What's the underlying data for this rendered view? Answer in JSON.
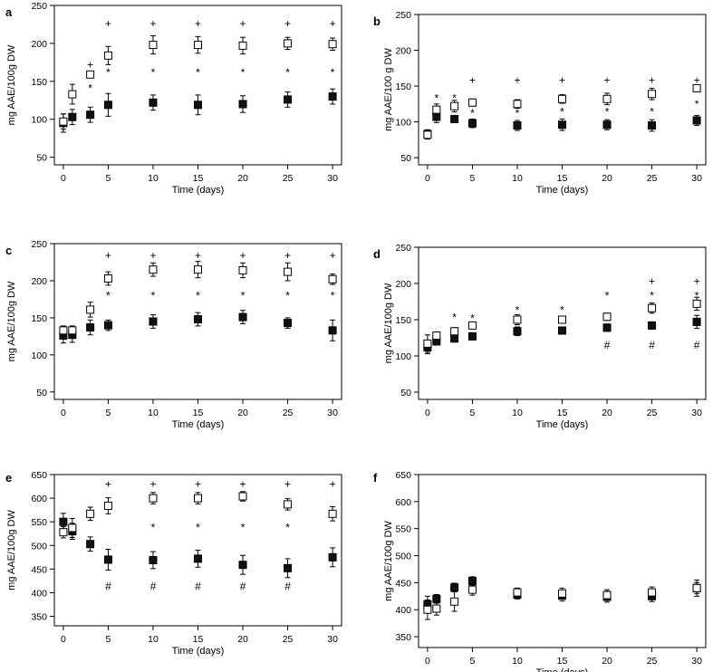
{
  "figure": {
    "colors": {
      "foreground": "#000000",
      "open_marker_fill": "#ffffff",
      "filled_marker_fill": "#111111",
      "background": "#ffffff"
    }
  },
  "chart_data": [
    {
      "panel": "a",
      "type": "scatter",
      "xlabel": "Time (days)",
      "ylabel": "mg  AAE/100g DW",
      "xlim": [
        -1,
        31
      ],
      "ylim": [
        40,
        250
      ],
      "xticks": [
        0,
        5,
        10,
        15,
        20,
        25,
        30
      ],
      "yticks": [
        50,
        100,
        150,
        200,
        250
      ],
      "series": [
        {
          "name": "open",
          "marker": "open-square",
          "x": [
            0,
            1,
            3,
            5,
            10,
            15,
            20,
            25,
            30
          ],
          "y": [
            97,
            133,
            159,
            184,
            198,
            198,
            197,
            200,
            199
          ],
          "err": [
            10,
            13,
            4,
            12,
            12,
            11,
            11,
            8,
            8
          ]
        },
        {
          "name": "filled",
          "marker": "filled-square",
          "x": [
            0,
            1,
            3,
            5,
            10,
            15,
            20,
            25,
            30
          ],
          "y": [
            95,
            103,
            106,
            119,
            122,
            119,
            120,
            126,
            130
          ],
          "err": [
            12,
            10,
            10,
            15,
            10,
            13,
            11,
            10,
            10
          ]
        }
      ],
      "annotations": [
        {
          "text": "+",
          "x": [
            3,
            5,
            10,
            15,
            20,
            25,
            30
          ],
          "y": [
            172,
            226,
            226,
            226,
            226,
            226,
            226
          ]
        },
        {
          "text": "*",
          "x": [
            3,
            5,
            10,
            15,
            20,
            25,
            30
          ],
          "y": [
            141,
            162,
            162,
            162,
            162,
            162,
            162
          ]
        }
      ]
    },
    {
      "panel": "b",
      "type": "scatter",
      "xlabel": "Time (days)",
      "ylabel": "mg AAE/100 g DW",
      "xlim": [
        -1,
        31
      ],
      "ylim": [
        40,
        250
      ],
      "xticks": [
        0,
        5,
        10,
        15,
        20,
        25,
        30
      ],
      "yticks": [
        50,
        100,
        150,
        200,
        250
      ],
      "series": [
        {
          "name": "open",
          "marker": "open-square",
          "x": [
            0,
            1,
            3,
            5,
            10,
            15,
            20,
            25,
            30
          ],
          "y": [
            82,
            117,
            122,
            127,
            125,
            132,
            132,
            139,
            147
          ],
          "err": [
            6,
            8,
            8,
            5,
            6,
            6,
            8,
            8,
            4
          ]
        },
        {
          "name": "filled",
          "marker": "filled-square",
          "x": [
            0,
            1,
            3,
            5,
            10,
            15,
            20,
            25,
            30
          ],
          "y": [
            83,
            107,
            104,
            98,
            95,
            96,
            96,
            95,
            102
          ],
          "err": [
            6,
            8,
            3,
            6,
            7,
            8,
            7,
            8,
            7
          ]
        }
      ],
      "annotations": [
        {
          "text": "+",
          "x": [
            5,
            10,
            15,
            20,
            25,
            30
          ],
          "y": [
            158,
            158,
            158,
            158,
            158,
            158
          ]
        },
        {
          "text": "*",
          "x": [
            1,
            3,
            5,
            10,
            15,
            20,
            25,
            30
          ],
          "y": [
            133,
            133,
            112,
            112,
            114,
            114,
            114,
            125
          ]
        }
      ]
    },
    {
      "panel": "c",
      "type": "scatter",
      "xlabel": "Time (days)",
      "ylabel": "mg AAE/100g DW",
      "xlim": [
        -1,
        31
      ],
      "ylim": [
        40,
        250
      ],
      "xticks": [
        0,
        5,
        10,
        15,
        20,
        25,
        30
      ],
      "yticks": [
        50,
        100,
        150,
        200,
        250
      ],
      "series": [
        {
          "name": "open",
          "marker": "open-square",
          "x": [
            0,
            1,
            3,
            5,
            10,
            15,
            20,
            25,
            30
          ],
          "y": [
            133,
            133,
            161,
            203,
            215,
            215,
            214,
            212,
            202
          ],
          "err": [
            6,
            6,
            10,
            9,
            9,
            11,
            10,
            12,
            7
          ]
        },
        {
          "name": "filled",
          "marker": "filled-square",
          "x": [
            0,
            1,
            3,
            5,
            10,
            15,
            20,
            25,
            30
          ],
          "y": [
            126,
            127,
            137,
            140,
            145,
            148,
            151,
            143,
            133
          ],
          "err": [
            10,
            10,
            10,
            7,
            9,
            9,
            9,
            7,
            14
          ]
        }
      ],
      "annotations": [
        {
          "text": "+",
          "x": [
            5,
            10,
            15,
            20,
            25,
            30
          ],
          "y": [
            234,
            234,
            234,
            234,
            234,
            234
          ]
        },
        {
          "text": "*",
          "x": [
            5,
            10,
            15,
            20,
            25,
            30
          ],
          "y": [
            180,
            180,
            180,
            180,
            180,
            180
          ]
        }
      ]
    },
    {
      "panel": "d",
      "type": "scatter",
      "xlabel": "Time (days)",
      "ylabel": "mg AAE/100g DW",
      "xlim": [
        -1,
        31
      ],
      "ylim": [
        40,
        250
      ],
      "xticks": [
        0,
        5,
        10,
        15,
        20,
        25,
        30
      ],
      "yticks": [
        50,
        100,
        150,
        200,
        250
      ],
      "series": [
        {
          "name": "open",
          "marker": "open-square",
          "x": [
            0,
            1,
            3,
            5,
            10,
            15,
            20,
            25,
            30
          ],
          "y": [
            117,
            128,
            134,
            142,
            150,
            150,
            154,
            166,
            172
          ],
          "err": [
            12,
            5,
            5,
            4,
            7,
            5,
            5,
            7,
            9
          ]
        },
        {
          "name": "filled",
          "marker": "filled-square",
          "x": [
            0,
            1,
            3,
            5,
            10,
            15,
            20,
            25,
            30
          ],
          "y": [
            112,
            120,
            124,
            127,
            134,
            135,
            139,
            142,
            147
          ],
          "err": [
            9,
            5,
            4,
            3,
            6,
            4,
            5,
            5,
            9
          ]
        }
      ],
      "annotations": [
        {
          "text": "*",
          "x": [
            3,
            5,
            10,
            15,
            20,
            25,
            30
          ],
          "y": [
            153,
            152,
            163,
            163,
            183,
            183,
            183
          ]
        },
        {
          "text": "+",
          "x": [
            25,
            30
          ],
          "y": [
            203,
            203
          ]
        },
        {
          "text": "#",
          "x": [
            20,
            25,
            30
          ],
          "y": [
            115,
            115,
            115
          ]
        }
      ]
    },
    {
      "panel": "e",
      "type": "scatter",
      "xlabel": "Time (days)",
      "ylabel": "mg AAE/100g DW",
      "xlim": [
        -1,
        31
      ],
      "ylim": [
        330,
        650
      ],
      "xticks": [
        0,
        5,
        10,
        15,
        20,
        25,
        30
      ],
      "yticks": [
        350,
        400,
        450,
        500,
        550,
        600,
        650
      ],
      "series": [
        {
          "name": "open",
          "marker": "open-square",
          "x": [
            0,
            1,
            3,
            5,
            10,
            15,
            20,
            25,
            30
          ],
          "y": [
            528,
            537,
            567,
            584,
            600,
            600,
            604,
            587,
            567
          ],
          "err": [
            12,
            20,
            14,
            17,
            12,
            12,
            10,
            12,
            15
          ]
        },
        {
          "name": "filled",
          "marker": "filled-square",
          "x": [
            0,
            1,
            3,
            5,
            10,
            15,
            20,
            25,
            30
          ],
          "y": [
            550,
            530,
            503,
            470,
            469,
            472,
            459,
            452,
            475
          ],
          "err": [
            18,
            17,
            15,
            22,
            18,
            18,
            20,
            20,
            20
          ]
        }
      ],
      "annotations": [
        {
          "text": "+",
          "x": [
            5,
            10,
            15,
            20,
            25,
            30
          ],
          "y": [
            630,
            630,
            630,
            630,
            630,
            630
          ]
        },
        {
          "text": "*",
          "x": [
            10,
            15,
            20,
            25
          ],
          "y": [
            538,
            538,
            538,
            538
          ]
        },
        {
          "text": "#",
          "x": [
            5,
            10,
            15,
            20,
            25
          ],
          "y": [
            413,
            413,
            413,
            413,
            413
          ]
        }
      ]
    },
    {
      "panel": "f",
      "type": "scatter",
      "xlabel": "Time (days)",
      "ylabel": "mg AAE/100g DW",
      "xlim": [
        -1,
        31
      ],
      "ylim": [
        330,
        650
      ],
      "xticks": [
        0,
        5,
        10,
        15,
        20,
        25,
        30
      ],
      "yticks": [
        350,
        400,
        450,
        500,
        550,
        600,
        650
      ],
      "series": [
        {
          "name": "open",
          "marker": "open-square",
          "x": [
            0,
            1,
            3,
            5,
            10,
            15,
            20,
            25,
            30
          ],
          "y": [
            400,
            402,
            415,
            437,
            432,
            430,
            427,
            432,
            440
          ],
          "err": [
            18,
            12,
            18,
            10,
            8,
            10,
            10,
            10,
            10
          ]
        },
        {
          "name": "filled",
          "marker": "filled-square",
          "x": [
            0,
            1,
            3,
            5,
            10,
            15,
            20,
            25,
            30
          ],
          "y": [
            410,
            420,
            441,
            453,
            428,
            426,
            424,
            425,
            440
          ],
          "err": [
            15,
            8,
            8,
            8,
            8,
            10,
            10,
            10,
            15
          ]
        }
      ],
      "annotations": []
    }
  ]
}
